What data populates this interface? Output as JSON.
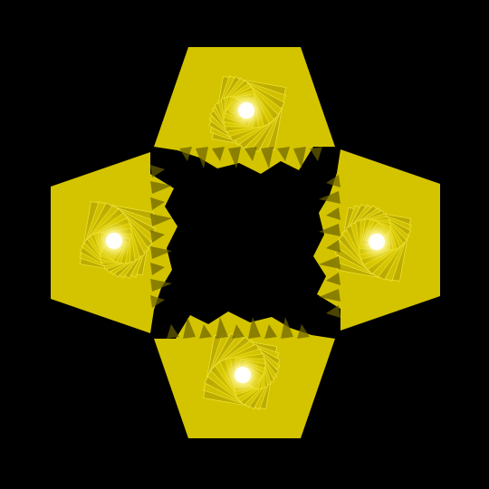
{
  "scene": {
    "background_color": "#000000",
    "primary_color": "#d4c400",
    "shade_color": "#b8a800",
    "highlight_color": "#ffffff",
    "glow_color": "#fff7a0",
    "dark_edge_color": "#6b6200",
    "tile_count": 4,
    "tiles": [
      {
        "name": "top",
        "shape": "hexagonal-fan"
      },
      {
        "name": "right",
        "shape": "hexagonal-fan"
      },
      {
        "name": "bottom",
        "shape": "hexagonal-fan"
      },
      {
        "name": "left",
        "shape": "hexagonal-fan"
      }
    ]
  }
}
